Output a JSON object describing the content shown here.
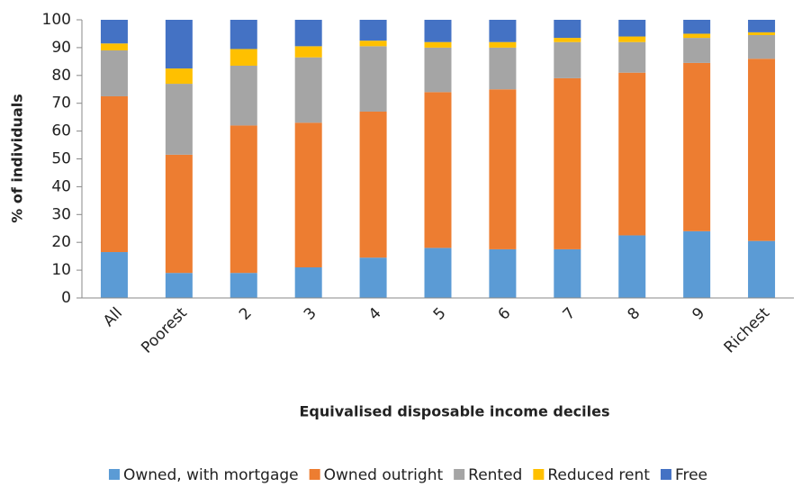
{
  "chart_data": {
    "type": "stacked_bar",
    "x_label": "Equivalised disposable income deciles",
    "y_label": "% of individuals",
    "categories": [
      "All",
      "Poorest",
      "2",
      "3",
      "4",
      "5",
      "6",
      "7",
      "8",
      "9",
      "Richest"
    ],
    "series": [
      {
        "name": "Owned, with mortgage",
        "color": "#5b9bd5",
        "values": [
          16.5,
          9,
          9,
          11,
          14.5,
          18,
          17.5,
          17.5,
          22.5,
          24,
          20.5
        ]
      },
      {
        "name": "Owned outright",
        "color": "#ed7d31",
        "values": [
          56,
          42.5,
          53,
          52,
          52.5,
          56,
          57.5,
          61.5,
          58.5,
          60.5,
          65.5
        ]
      },
      {
        "name": "Rented",
        "color": "#a5a5a5",
        "values": [
          16.5,
          25.5,
          21.5,
          23.5,
          23.5,
          16,
          15,
          13,
          11,
          9,
          8.5
        ]
      },
      {
        "name": "Reduced rent",
        "color": "#ffc000",
        "values": [
          2.5,
          5.5,
          6,
          4,
          2,
          2,
          2,
          1.5,
          2,
          1.5,
          1
        ]
      },
      {
        "name": "Free",
        "color": "#4472c4",
        "values": [
          8.5,
          17.5,
          10.5,
          9.5,
          7.5,
          8,
          8,
          6.5,
          6,
          5,
          4.5
        ]
      }
    ],
    "ylim": [
      0,
      100
    ],
    "yticks": [
      0,
      10,
      20,
      30,
      40,
      50,
      60,
      70,
      80,
      90,
      100
    ],
    "grid": false,
    "legend": "bottom"
  }
}
